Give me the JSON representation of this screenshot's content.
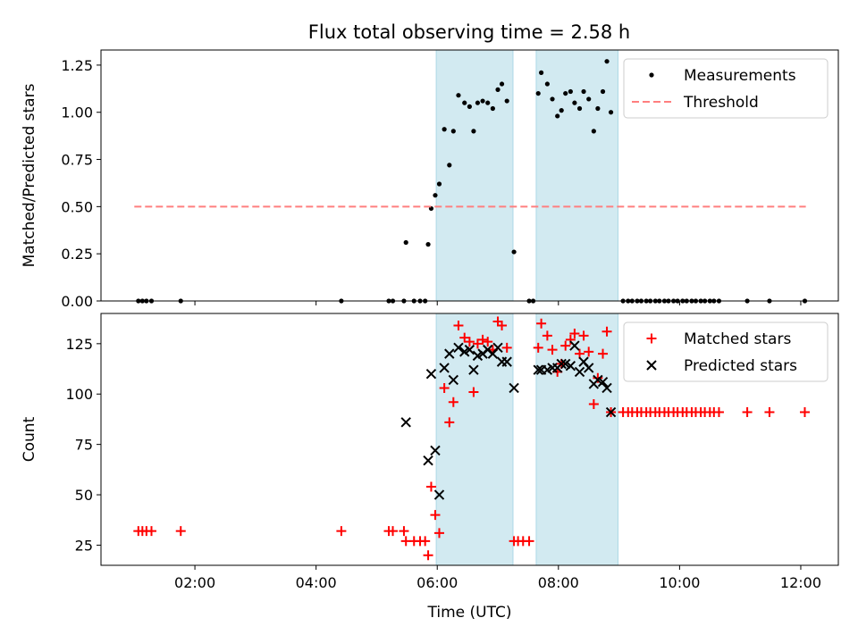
{
  "title": "Flux total observing time = 2.58 h",
  "chart_data": [
    {
      "type": "scatter",
      "ylabel": "Matched/Predicted stars",
      "xlabel": "",
      "ylim": [
        0,
        1.33
      ],
      "yticks": [
        "0.00",
        "0.25",
        "0.50",
        "0.75",
        "1.00",
        "1.25"
      ],
      "ytick_values": [
        0,
        0.25,
        0.5,
        0.75,
        1.0,
        1.25
      ],
      "x_range_hours": [
        0.45,
        12.62
      ],
      "shaded_intervals": [
        [
          "05:59",
          "07:15"
        ],
        [
          "07:38",
          "08:59"
        ]
      ],
      "shade_color": "#add8e6",
      "legend_position": "upper right",
      "series": [
        {
          "name": "Measurements",
          "marker": "dot",
          "color": "#000000",
          "points": [
            [
              "01:04",
              0
            ],
            [
              "01:08",
              0
            ],
            [
              "01:12",
              0
            ],
            [
              "01:17",
              0
            ],
            [
              "01:46",
              0
            ],
            [
              "04:25",
              0
            ],
            [
              "05:12",
              0
            ],
            [
              "05:16",
              0
            ],
            [
              "05:27",
              0
            ],
            [
              "05:29",
              0.31
            ],
            [
              "05:37",
              0
            ],
            [
              "05:43",
              0
            ],
            [
              "05:48",
              0
            ],
            [
              "05:51",
              0.3
            ],
            [
              "05:54",
              0.49
            ],
            [
              "05:58",
              0.56
            ],
            [
              "06:02",
              0.62
            ],
            [
              "06:07",
              0.91
            ],
            [
              "06:12",
              0.72
            ],
            [
              "06:16",
              0.9
            ],
            [
              "06:21",
              1.09
            ],
            [
              "06:27",
              1.05
            ],
            [
              "06:32",
              1.03
            ],
            [
              "06:36",
              0.9
            ],
            [
              "06:40",
              1.05
            ],
            [
              "06:45",
              1.06
            ],
            [
              "06:50",
              1.05
            ],
            [
              "06:55",
              1.02
            ],
            [
              "07:00",
              1.12
            ],
            [
              "07:04",
              1.15
            ],
            [
              "07:09",
              1.06
            ],
            [
              "07:16",
              0.26
            ],
            [
              "07:31",
              0
            ],
            [
              "07:35",
              0
            ],
            [
              "07:40",
              1.1
            ],
            [
              "07:43",
              1.21
            ],
            [
              "07:49",
              1.15
            ],
            [
              "07:54",
              1.07
            ],
            [
              "07:59",
              0.98
            ],
            [
              "08:03",
              1.01
            ],
            [
              "08:07",
              1.1
            ],
            [
              "08:12",
              1.11
            ],
            [
              "08:16",
              1.05
            ],
            [
              "08:21",
              1.02
            ],
            [
              "08:25",
              1.11
            ],
            [
              "08:30",
              1.07
            ],
            [
              "08:35",
              0.9
            ],
            [
              "08:39",
              1.02
            ],
            [
              "08:44",
              1.11
            ],
            [
              "08:48",
              1.27
            ],
            [
              "08:52",
              1.0
            ],
            [
              "09:04",
              0
            ],
            [
              "09:09",
              0
            ],
            [
              "09:13",
              0
            ],
            [
              "09:18",
              0
            ],
            [
              "09:22",
              0
            ],
            [
              "09:27",
              0
            ],
            [
              "09:31",
              0
            ],
            [
              "09:36",
              0
            ],
            [
              "09:40",
              0
            ],
            [
              "09:45",
              0
            ],
            [
              "09:49",
              0
            ],
            [
              "09:54",
              0
            ],
            [
              "09:58",
              0
            ],
            [
              "10:03",
              0
            ],
            [
              "10:07",
              0
            ],
            [
              "10:12",
              0
            ],
            [
              "10:16",
              0
            ],
            [
              "10:21",
              0
            ],
            [
              "10:25",
              0
            ],
            [
              "10:30",
              0
            ],
            [
              "10:34",
              0
            ],
            [
              "10:39",
              0
            ],
            [
              "11:07",
              0
            ],
            [
              "11:29",
              0
            ],
            [
              "12:04",
              0
            ]
          ]
        },
        {
          "name": "Threshold",
          "type": "line",
          "style": "dashed",
          "color": "#ff7f7f",
          "points": [
            [
              "01:00",
              0.5
            ],
            [
              "12:05",
              0.5
            ]
          ]
        }
      ]
    },
    {
      "type": "scatter",
      "ylabel": "Count",
      "xlabel": "Time (UTC)",
      "ylim": [
        15,
        140
      ],
      "yticks": [
        "25",
        "50",
        "75",
        "100",
        "125"
      ],
      "ytick_values": [
        25,
        50,
        75,
        100,
        125
      ],
      "x_range_hours": [
        0.45,
        12.62
      ],
      "xticks": [
        "02:00",
        "04:00",
        "06:00",
        "08:00",
        "10:00",
        "12:00"
      ],
      "xtick_values": [
        2,
        4,
        6,
        8,
        10,
        12
      ],
      "shaded_intervals": [
        [
          "05:59",
          "07:15"
        ],
        [
          "07:38",
          "08:59"
        ]
      ],
      "shade_color": "#add8e6",
      "legend_position": "upper right",
      "series": [
        {
          "name": "Matched stars",
          "marker": "plus",
          "color": "#ff0000",
          "points": [
            [
              "01:04",
              32
            ],
            [
              "01:08",
              32
            ],
            [
              "01:12",
              32
            ],
            [
              "01:17",
              32
            ],
            [
              "01:46",
              32
            ],
            [
              "04:25",
              32
            ],
            [
              "05:12",
              32
            ],
            [
              "05:16",
              32
            ],
            [
              "05:27",
              32
            ],
            [
              "05:29",
              27
            ],
            [
              "05:37",
              27
            ],
            [
              "05:43",
              27
            ],
            [
              "05:48",
              27
            ],
            [
              "05:51",
              20
            ],
            [
              "05:54",
              54
            ],
            [
              "05:58",
              40
            ],
            [
              "06:02",
              31
            ],
            [
              "06:07",
              103
            ],
            [
              "06:12",
              86
            ],
            [
              "06:16",
              96
            ],
            [
              "06:21",
              134
            ],
            [
              "06:27",
              128
            ],
            [
              "06:32",
              126
            ],
            [
              "06:36",
              101
            ],
            [
              "06:40",
              125
            ],
            [
              "06:45",
              127
            ],
            [
              "06:50",
              126
            ],
            [
              "06:55",
              122
            ],
            [
              "07:00",
              136
            ],
            [
              "07:04",
              134
            ],
            [
              "07:09",
              123
            ],
            [
              "07:16",
              27
            ],
            [
              "07:20",
              27
            ],
            [
              "07:25",
              27
            ],
            [
              "07:31",
              27
            ],
            [
              "07:40",
              123
            ],
            [
              "07:43",
              135
            ],
            [
              "07:49",
              129
            ],
            [
              "07:54",
              122
            ],
            [
              "07:59",
              111
            ],
            [
              "08:03",
              115
            ],
            [
              "08:07",
              124
            ],
            [
              "08:12",
              127
            ],
            [
              "08:16",
              130
            ],
            [
              "08:21",
              120
            ],
            [
              "08:25",
              129
            ],
            [
              "08:30",
              121
            ],
            [
              "08:35",
              95
            ],
            [
              "08:39",
              108
            ],
            [
              "08:44",
              120
            ],
            [
              "08:48",
              131
            ],
            [
              "08:52",
              91
            ],
            [
              "09:04",
              91
            ],
            [
              "09:09",
              91
            ],
            [
              "09:13",
              91
            ],
            [
              "09:18",
              91
            ],
            [
              "09:22",
              91
            ],
            [
              "09:27",
              91
            ],
            [
              "09:31",
              91
            ],
            [
              "09:36",
              91
            ],
            [
              "09:40",
              91
            ],
            [
              "09:45",
              91
            ],
            [
              "09:49",
              91
            ],
            [
              "09:54",
              91
            ],
            [
              "09:58",
              91
            ],
            [
              "10:03",
              91
            ],
            [
              "10:07",
              91
            ],
            [
              "10:12",
              91
            ],
            [
              "10:16",
              91
            ],
            [
              "10:21",
              91
            ],
            [
              "10:25",
              91
            ],
            [
              "10:30",
              91
            ],
            [
              "10:34",
              91
            ],
            [
              "10:39",
              91
            ],
            [
              "11:07",
              91
            ],
            [
              "11:29",
              91
            ],
            [
              "12:04",
              91
            ]
          ]
        },
        {
          "name": "Predicted stars",
          "marker": "x",
          "color": "#000000",
          "points": [
            [
              "05:29",
              86
            ],
            [
              "05:51",
              67
            ],
            [
              "05:54",
              110
            ],
            [
              "05:58",
              72
            ],
            [
              "06:02",
              50
            ],
            [
              "06:07",
              113
            ],
            [
              "06:12",
              120
            ],
            [
              "06:16",
              107
            ],
            [
              "06:21",
              123
            ],
            [
              "06:27",
              121
            ],
            [
              "06:32",
              122
            ],
            [
              "06:36",
              112
            ],
            [
              "06:40",
              119
            ],
            [
              "06:45",
              120
            ],
            [
              "06:50",
              122
            ],
            [
              "06:55",
              120
            ],
            [
              "07:00",
              123
            ],
            [
              "07:04",
              116
            ],
            [
              "07:09",
              116
            ],
            [
              "07:16",
              103
            ],
            [
              "07:40",
              112
            ],
            [
              "07:43",
              112
            ],
            [
              "07:49",
              112
            ],
            [
              "07:54",
              113
            ],
            [
              "07:59",
              113
            ],
            [
              "08:03",
              115
            ],
            [
              "08:07",
              115
            ],
            [
              "08:12",
              114
            ],
            [
              "08:16",
              124
            ],
            [
              "08:21",
              111
            ],
            [
              "08:25",
              116
            ],
            [
              "08:30",
              113
            ],
            [
              "08:35",
              105
            ],
            [
              "08:39",
              107
            ],
            [
              "08:44",
              106
            ],
            [
              "08:48",
              103
            ],
            [
              "08:52",
              91
            ]
          ]
        }
      ]
    }
  ]
}
